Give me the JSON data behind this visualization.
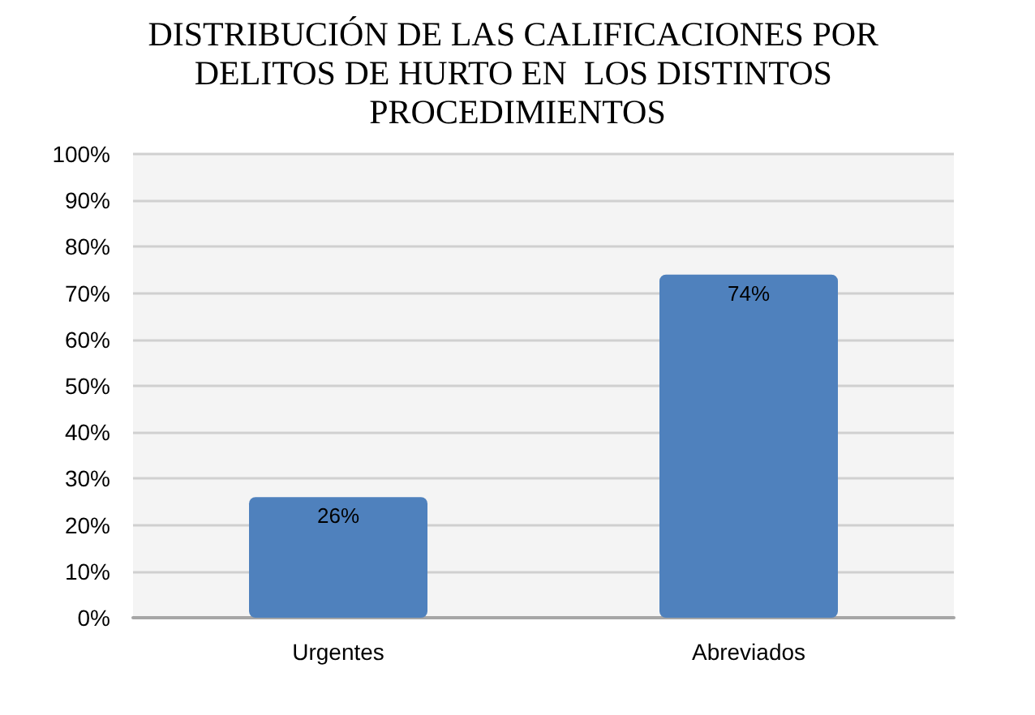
{
  "chart_data": {
    "type": "bar",
    "title": "DISTRIBUCIÓN DE LAS CALIFICACIONES POR DELITOS DE HURTO EN  LOS DISTINTOS PROCEDIMIENTOS",
    "categories": [
      "Urgentes",
      "Abreviados"
    ],
    "values": [
      26,
      74
    ],
    "color": "#4f81bd",
    "value_labels": [
      "26%",
      "74%"
    ],
    "ylim": [
      0,
      100
    ],
    "yticks": [
      {
        "value": 0,
        "label": "0%"
      },
      {
        "value": 10,
        "label": "10%"
      },
      {
        "value": 20,
        "label": "20%"
      },
      {
        "value": 30,
        "label": "30%"
      },
      {
        "value": 40,
        "label": "40%"
      },
      {
        "value": 50,
        "label": "50%"
      },
      {
        "value": 60,
        "label": "60%"
      },
      {
        "value": 70,
        "label": "70%"
      },
      {
        "value": 80,
        "label": "80%"
      },
      {
        "value": 90,
        "label": "90%"
      },
      {
        "value": 100,
        "label": "100%"
      }
    ],
    "grid": true
  }
}
